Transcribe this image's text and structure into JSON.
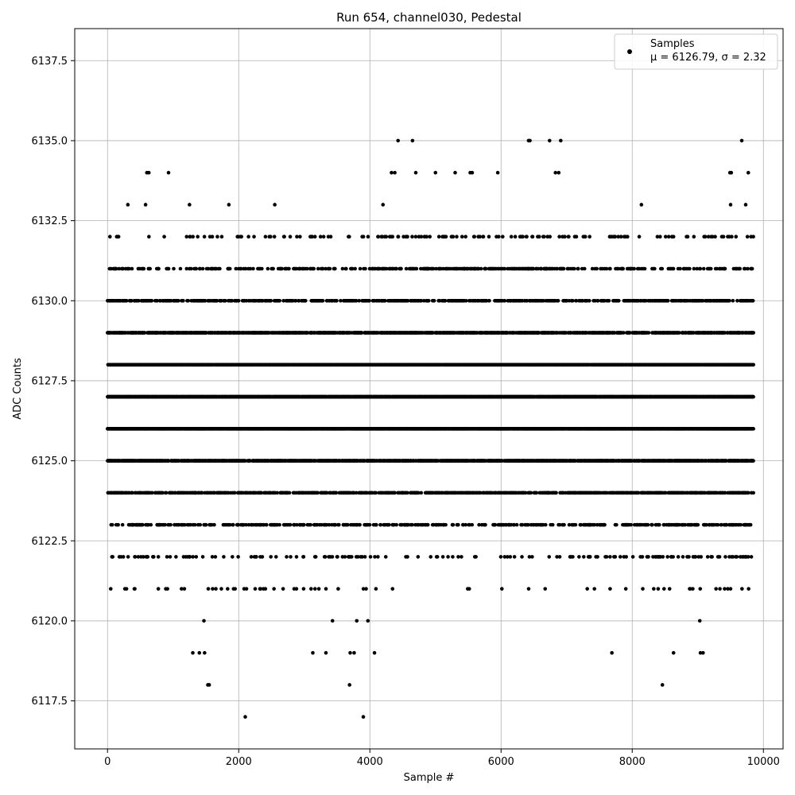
{
  "chart_data": {
    "type": "scatter",
    "title": "Run 654, channel030, Pedestal",
    "xlabel": "Sample #",
    "ylabel": "ADC Counts",
    "xlim": [
      -500,
      10300
    ],
    "ylim": [
      6116.0,
      6138.5
    ],
    "x_ticks": [
      0,
      2000,
      4000,
      6000,
      8000,
      10000
    ],
    "x_tick_labels": [
      "0",
      "2000",
      "4000",
      "6000",
      "8000",
      "10000"
    ],
    "y_ticks": [
      6117.5,
      6120.0,
      6122.5,
      6125.0,
      6127.5,
      6130.0,
      6132.5,
      6135.0,
      6137.5
    ],
    "y_tick_labels": [
      "6117.5",
      "6120.0",
      "6122.5",
      "6125.0",
      "6127.5",
      "6130.0",
      "6132.5",
      "6135.0",
      "6137.5"
    ],
    "grid": true,
    "legend_position": "top-right",
    "series": [
      {
        "name": "Samples",
        "color": "#000000",
        "marker": "circle",
        "stats_label": "μ = 6126.79, σ = 2.32",
        "mean": 6126.79,
        "std": 2.32,
        "x_range": [
          0,
          9850
        ],
        "levels": [
          6121,
          6122,
          6123,
          6124,
          6125,
          6126,
          6127,
          6128,
          6129,
          6130,
          6131,
          6132
        ],
        "outliers": [
          [
            310,
            6133
          ],
          [
            580,
            6133
          ],
          [
            600,
            6134
          ],
          [
            630,
            6134
          ],
          [
            930,
            6134
          ],
          [
            1250,
            6133
          ],
          [
            1850,
            6133
          ],
          [
            2550,
            6133
          ],
          [
            4200,
            6133
          ],
          [
            4330,
            6134
          ],
          [
            4380,
            6134
          ],
          [
            4430,
            6135
          ],
          [
            4650,
            6135
          ],
          [
            4700,
            6134
          ],
          [
            5000,
            6134
          ],
          [
            5300,
            6134
          ],
          [
            5530,
            6134
          ],
          [
            5560,
            6134
          ],
          [
            5950,
            6134
          ],
          [
            6420,
            6135
          ],
          [
            6440,
            6135
          ],
          [
            6740,
            6135
          ],
          [
            6830,
            6134
          ],
          [
            6880,
            6134
          ],
          [
            6910,
            6135
          ],
          [
            8140,
            6133
          ],
          [
            9490,
            6134
          ],
          [
            9510,
            6134
          ],
          [
            9500,
            6133
          ],
          [
            9670,
            6135
          ],
          [
            9730,
            6133
          ],
          [
            9770,
            6134
          ],
          [
            1470,
            6120
          ],
          [
            1300,
            6119
          ],
          [
            1400,
            6119
          ],
          [
            1480,
            6119
          ],
          [
            1530,
            6118
          ],
          [
            1550,
            6118
          ],
          [
            2100,
            6117
          ],
          [
            3130,
            6119
          ],
          [
            3330,
            6119
          ],
          [
            3430,
            6120
          ],
          [
            3690,
            6118
          ],
          [
            3700,
            6119
          ],
          [
            3760,
            6119
          ],
          [
            3800,
            6120
          ],
          [
            3900,
            6117
          ],
          [
            3970,
            6120
          ],
          [
            4070,
            6119
          ],
          [
            7690,
            6119
          ],
          [
            8460,
            6118
          ],
          [
            8630,
            6119
          ],
          [
            9030,
            6120
          ],
          [
            9040,
            6119
          ],
          [
            9080,
            6119
          ]
        ]
      }
    ]
  }
}
